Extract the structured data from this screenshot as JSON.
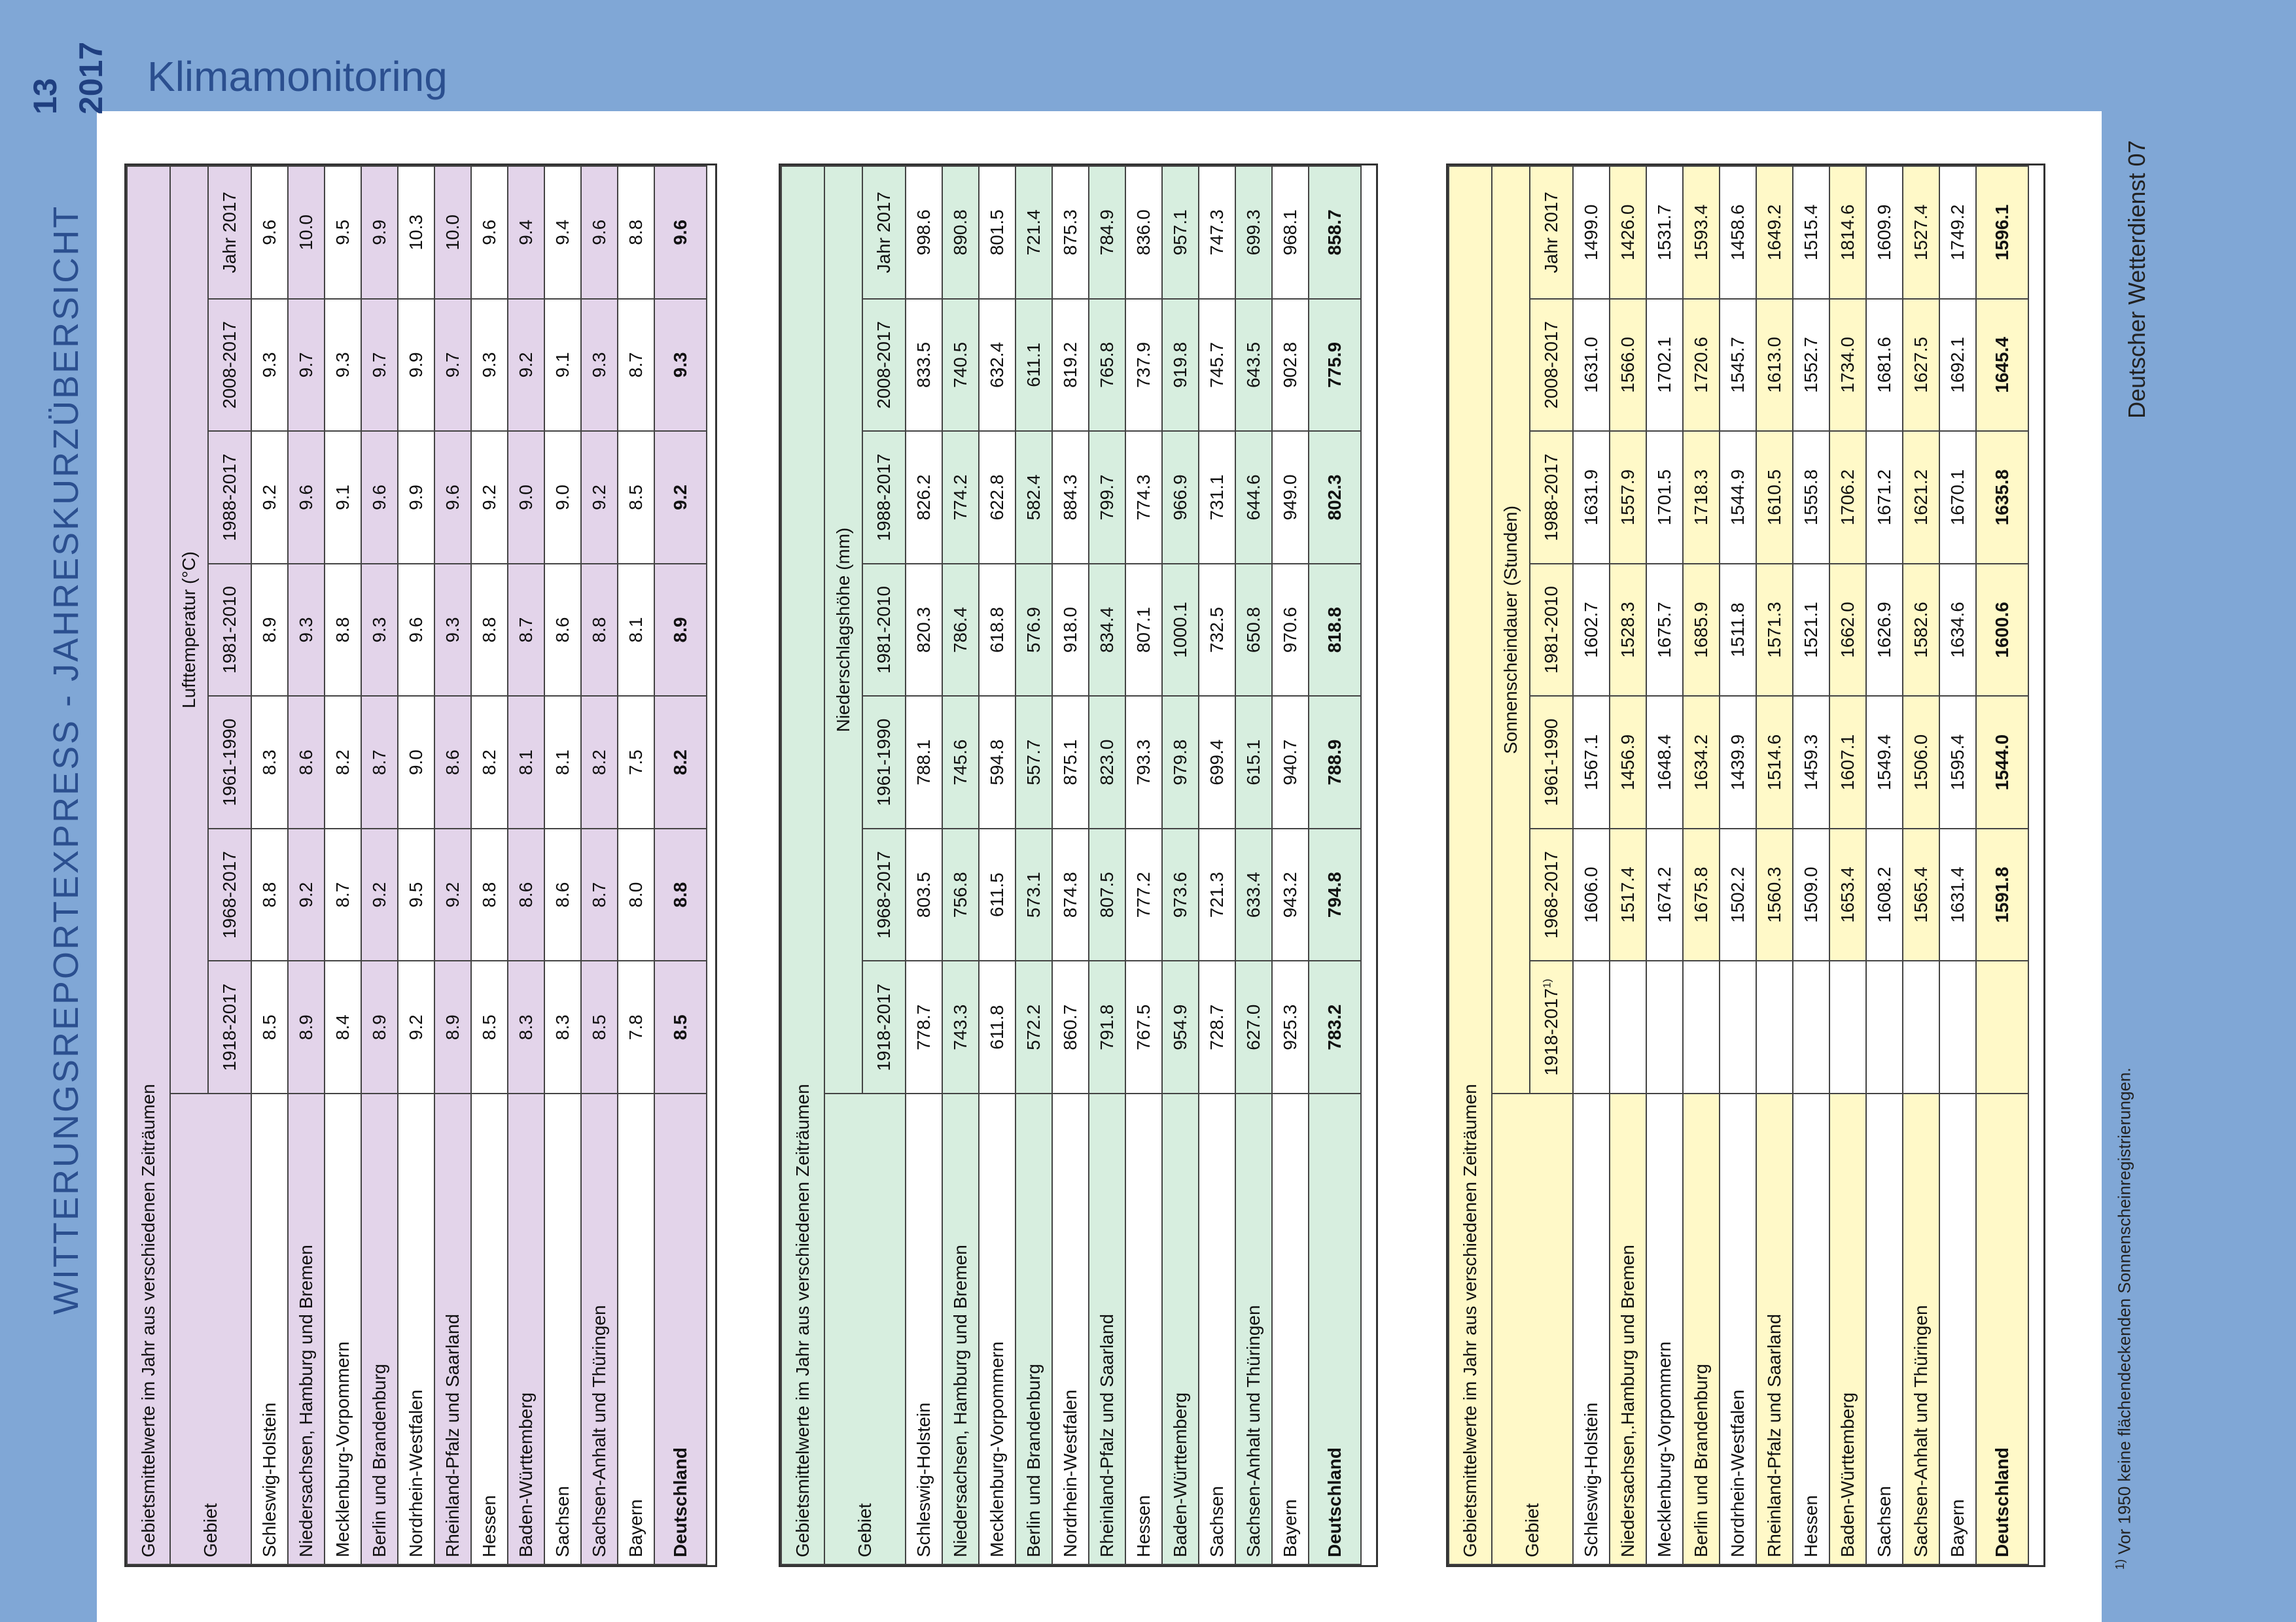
{
  "header": {
    "section_title": "Klimamonitoring",
    "page_number": "13",
    "year": "2017",
    "side_title": "WITTERUNGSREPORTEXPRESS - JAHRESKURZÜBERSICHT",
    "publisher": "Deutscher Wetterdienst  07"
  },
  "footnote": {
    "marker": "1)",
    "text": "Vor 1950 keine flächendeckenden Sonnenscheinregistrierungen."
  },
  "tables": {
    "temperature": {
      "caption": "Gebietsmittelwerte im Jahr aus verschiedenen Zeiträumen",
      "group_label": "Lufttemperatur (°C)",
      "region_header": "Gebiet",
      "columns": [
        "1918-2017",
        "1968-2017",
        "1961-1990",
        "1981-2010",
        "1988-2017",
        "2008-2017",
        "Jahr 2017"
      ],
      "rows": [
        {
          "name": "Schleswig-Holstein",
          "values": [
            "8.5",
            "8.8",
            "8.3",
            "8.9",
            "9.2",
            "9.3",
            "9.6"
          ]
        },
        {
          "name": "Niedersachsen, Hamburg und Bremen",
          "values": [
            "8.9",
            "9.2",
            "8.6",
            "9.3",
            "9.6",
            "9.7",
            "10.0"
          ]
        },
        {
          "name": "Mecklenburg-Vorpommern",
          "values": [
            "8.4",
            "8.7",
            "8.2",
            "8.8",
            "9.1",
            "9.3",
            "9.5"
          ]
        },
        {
          "name": "Berlin und Brandenburg",
          "values": [
            "8.9",
            "9.2",
            "8.7",
            "9.3",
            "9.6",
            "9.7",
            "9.9"
          ]
        },
        {
          "name": "Nordrhein-Westfalen",
          "values": [
            "9.2",
            "9.5",
            "9.0",
            "9.6",
            "9.9",
            "9.9",
            "10.3"
          ]
        },
        {
          "name": "Rheinland-Pfalz und Saarland",
          "values": [
            "8.9",
            "9.2",
            "8.6",
            "9.3",
            "9.6",
            "9.7",
            "10.0"
          ]
        },
        {
          "name": "Hessen",
          "values": [
            "8.5",
            "8.8",
            "8.2",
            "8.8",
            "9.2",
            "9.3",
            "9.6"
          ]
        },
        {
          "name": "Baden-Württemberg",
          "values": [
            "8.3",
            "8.6",
            "8.1",
            "8.7",
            "9.0",
            "9.2",
            "9.4"
          ]
        },
        {
          "name": "Sachsen",
          "values": [
            "8.3",
            "8.6",
            "8.1",
            "8.6",
            "9.0",
            "9.1",
            "9.4"
          ]
        },
        {
          "name": "Sachsen-Anhalt und Thüringen",
          "values": [
            "8.5",
            "8.7",
            "8.2",
            "8.8",
            "9.2",
            "9.3",
            "9.6"
          ]
        },
        {
          "name": "Bayern",
          "values": [
            "7.8",
            "8.0",
            "7.5",
            "8.1",
            "8.5",
            "8.7",
            "8.8"
          ]
        }
      ],
      "total": {
        "name": "Deutschland",
        "values": [
          "8.5",
          "8.8",
          "8.2",
          "8.9",
          "9.2",
          "9.3",
          "9.6"
        ]
      }
    },
    "precipitation": {
      "caption": "Gebietsmittelwerte im Jahr aus verschiedenen Zeiträumen",
      "group_label": "Niederschlagshöhe (mm)",
      "region_header": "Gebiet",
      "columns": [
        "1918-2017",
        "1968-2017",
        "1961-1990",
        "1981-2010",
        "1988-2017",
        "2008-2017",
        "Jahr 2017"
      ],
      "rows": [
        {
          "name": "Schleswig-Holstein",
          "values": [
            "778.7",
            "803.5",
            "788.1",
            "820.3",
            "826.2",
            "833.5",
            "998.6"
          ]
        },
        {
          "name": "Niedersachsen, Hamburg und Bremen",
          "values": [
            "743.3",
            "756.8",
            "745.6",
            "786.4",
            "774.2",
            "740.5",
            "890.8"
          ]
        },
        {
          "name": "Mecklenburg-Vorpommern",
          "values": [
            "611.8",
            "611.5",
            "594.8",
            "618.8",
            "622.8",
            "632.4",
            "801.5"
          ]
        },
        {
          "name": "Berlin und Brandenburg",
          "values": [
            "572.2",
            "573.1",
            "557.7",
            "576.9",
            "582.4",
            "611.1",
            "721.4"
          ]
        },
        {
          "name": "Nordrhein-Westfalen",
          "values": [
            "860.7",
            "874.8",
            "875.1",
            "918.0",
            "884.3",
            "819.2",
            "875.3"
          ]
        },
        {
          "name": "Rheinland-Pfalz und Saarland",
          "values": [
            "791.8",
            "807.5",
            "823.0",
            "834.4",
            "799.7",
            "765.8",
            "784.9"
          ]
        },
        {
          "name": "Hessen",
          "values": [
            "767.5",
            "777.2",
            "793.3",
            "807.1",
            "774.3",
            "737.9",
            "836.0"
          ]
        },
        {
          "name": "Baden-Württemberg",
          "values": [
            "954.9",
            "973.6",
            "979.8",
            "1000.1",
            "966.9",
            "919.8",
            "957.1"
          ]
        },
        {
          "name": "Sachsen",
          "values": [
            "728.7",
            "721.3",
            "699.4",
            "732.5",
            "731.1",
            "745.7",
            "747.3"
          ]
        },
        {
          "name": "Sachsen-Anhalt und Thüringen",
          "values": [
            "627.0",
            "633.4",
            "615.1",
            "650.8",
            "644.6",
            "643.5",
            "699.3"
          ]
        },
        {
          "name": "Bayern",
          "values": [
            "925.3",
            "943.2",
            "940.7",
            "970.6",
            "949.0",
            "902.8",
            "968.1"
          ]
        }
      ],
      "total": {
        "name": "Deutschland",
        "values": [
          "783.2",
          "794.8",
          "788.9",
          "818.8",
          "802.3",
          "775.9",
          "858.7"
        ]
      }
    },
    "sunshine": {
      "caption": "Gebietsmittelwerte im Jahr aus verschiedenen Zeiträumen",
      "group_label": "Sonnenscheindauer (Stunden)",
      "region_header": "Gebiet",
      "columns": [
        "1918-2017",
        "1968-2017",
        "1961-1990",
        "1981-2010",
        "1988-2017",
        "2008-2017",
        "Jahr 2017"
      ],
      "first_column_note": "1)",
      "rows": [
        {
          "name": "Schleswig-Holstein",
          "values": [
            "",
            "1606.0",
            "1567.1",
            "1602.7",
            "1631.9",
            "1631.0",
            "1499.0"
          ]
        },
        {
          "name": "Niedersachsen,.Hamburg und Bremen",
          "values": [
            "",
            "1517.4",
            "1456.9",
            "1528.3",
            "1557.9",
            "1566.0",
            "1426.0"
          ]
        },
        {
          "name": "Mecklenburg-Vorpommern",
          "values": [
            "",
            "1674.2",
            "1648.4",
            "1675.7",
            "1701.5",
            "1702.1",
            "1531.7"
          ]
        },
        {
          "name": "Berlin und Brandenburg",
          "values": [
            "",
            "1675.8",
            "1634.2",
            "1685.9",
            "1718.3",
            "1720.6",
            "1593.4"
          ]
        },
        {
          "name": "Nordrhein-Westfalen",
          "values": [
            "",
            "1502.2",
            "1439.9",
            "1511.8",
            "1544.9",
            "1545.7",
            "1458.6"
          ]
        },
        {
          "name": "Rheinland-Pfalz und Saarland",
          "values": [
            "",
            "1560.3",
            "1514.6",
            "1571.3",
            "1610.5",
            "1613.0",
            "1649.2"
          ]
        },
        {
          "name": "Hessen",
          "values": [
            "",
            "1509.0",
            "1459.3",
            "1521.1",
            "1555.8",
            "1552.7",
            "1515.4"
          ]
        },
        {
          "name": "Baden-Württemberg",
          "values": [
            "",
            "1653.4",
            "1607.1",
            "1662.0",
            "1706.2",
            "1734.0",
            "1814.6"
          ]
        },
        {
          "name": "Sachsen",
          "values": [
            "",
            "1608.2",
            "1549.4",
            "1626.9",
            "1671.2",
            "1681.6",
            "1609.9"
          ]
        },
        {
          "name": "Sachsen-Anhalt und Thüringen",
          "values": [
            "",
            "1565.4",
            "1506.0",
            "1582.6",
            "1621.2",
            "1627.5",
            "1527.4"
          ]
        },
        {
          "name": "Bayern",
          "values": [
            "",
            "1631.4",
            "1595.4",
            "1634.6",
            "1670.1",
            "1692.1",
            "1749.2"
          ]
        }
      ],
      "total": {
        "name": "Deutschland",
        "values": [
          "",
          "1591.8",
          "1544.0",
          "1600.6",
          "1635.8",
          "1645.4",
          "1596.1"
        ]
      }
    }
  }
}
